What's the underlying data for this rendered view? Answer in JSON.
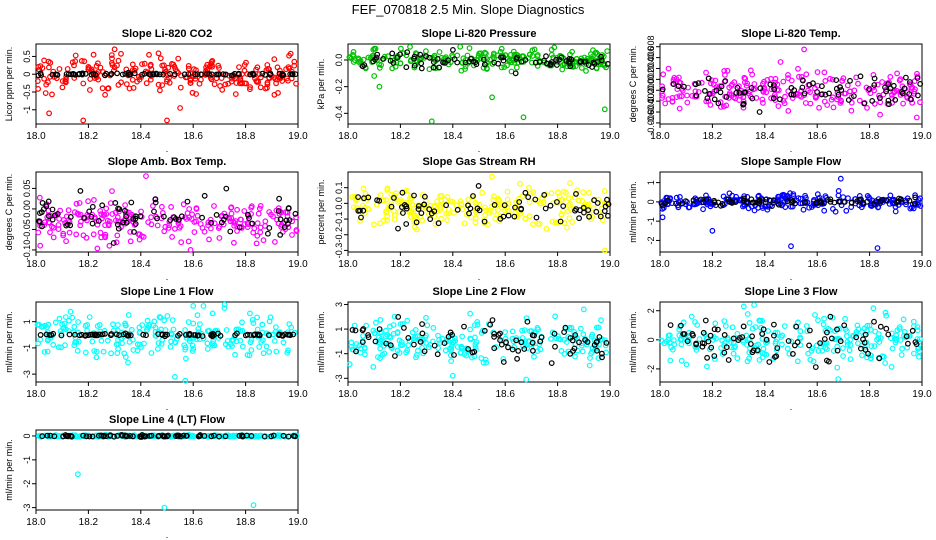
{
  "page": {
    "title": "FEF_070818  2.5 Min. Slope Diagnostics",
    "xlabel": "."
  },
  "chart_data": [
    {
      "type": "scatter",
      "title": "Slope Li-820 CO2",
      "ylabel": "Licor ppm per min.",
      "xlim": [
        18.0,
        19.0
      ],
      "ylim": [
        -1.4,
        0.85
      ],
      "xticks": [
        "18.0",
        "18.2",
        "18.4",
        "18.6",
        "18.8",
        "19.0"
      ],
      "yticks": [
        {
          "v": -1,
          "l": "-1"
        },
        {
          "v": -0.5,
          "l": "-0.5"
        },
        {
          "v": 0,
          "l": "0"
        },
        {
          "v": 0.5,
          "l": "0.5"
        }
      ],
      "series": [
        {
          "color": "#ff0000",
          "center": 0.0,
          "spread": 0.25,
          "outliers": [
            [
              18.05,
              -1.1
            ],
            [
              18.18,
              -1.3
            ],
            [
              18.5,
              -1.3
            ],
            [
              18.3,
              0.7
            ],
            [
              18.55,
              -0.95
            ],
            [
              18.22,
              0.55
            ]
          ]
        },
        {
          "color": "#000000",
          "center": 0.0,
          "spread": 0.015,
          "outliers": []
        }
      ]
    },
    {
      "type": "scatter",
      "title": "Slope Li-820 Pressure",
      "ylabel": "kPa per min.",
      "xlim": [
        18.0,
        19.0
      ],
      "ylim": [
        -0.48,
        0.12
      ],
      "xticks": [
        "18.0",
        "18.2",
        "18.4",
        "18.6",
        "18.8",
        "19.0"
      ],
      "yticks": [
        {
          "v": -0.4,
          "l": "-0.4"
        },
        {
          "v": -0.2,
          "l": "-0.2"
        },
        {
          "v": 0,
          "l": "0.0"
        }
      ],
      "series": [
        {
          "color": "#00c000",
          "center": 0.0,
          "spread": 0.04,
          "outliers": [
            [
              18.32,
              -0.46
            ],
            [
              18.12,
              -0.2
            ],
            [
              18.55,
              -0.28
            ],
            [
              18.67,
              -0.43
            ],
            [
              18.98,
              -0.37
            ],
            [
              18.1,
              -0.12
            ]
          ]
        },
        {
          "color": "#000000",
          "center": 0.0,
          "spread": 0.03,
          "outliers": [
            [
              18.64,
              -0.1
            ]
          ]
        }
      ]
    },
    {
      "type": "scatter",
      "title": "Slope Li-820 Temp.",
      "ylabel": "degrees C per min.",
      "xlim": [
        18.0,
        19.0
      ],
      "ylim": [
        -0.0062,
        0.0085
      ],
      "xticks": [
        "18.0",
        "18.2",
        "18.4",
        "18.6",
        "18.8",
        "19.0"
      ],
      "yticks": [
        {
          "v": -0.006,
          "l": "-0.006"
        },
        {
          "v": -0.004,
          "l": "-0.004"
        },
        {
          "v": -0.002,
          "l": "-0.002"
        },
        {
          "v": 0,
          "l": "0.000"
        },
        {
          "v": 0.002,
          "l": "0.002"
        },
        {
          "v": 0.004,
          "l": "0.004"
        },
        {
          "v": 0.006,
          "l": "0.006"
        },
        {
          "v": 0.008,
          "l": "0.008"
        }
      ],
      "series": [
        {
          "color": "#ff00ff",
          "center": 0.0,
          "spread": 0.0016,
          "outliers": [
            [
              18.55,
              0.0075
            ],
            [
              18.98,
              -0.005
            ],
            [
              18.84,
              -0.0045
            ],
            [
              18.46,
              0.0052
            ]
          ]
        },
        {
          "color": "#000000",
          "center": 0.0,
          "spread": 0.0015,
          "outliers": [
            [
              18.38,
              -0.004
            ]
          ]
        }
      ]
    },
    {
      "type": "scatter",
      "title": "Slope Amb. Box Temp.",
      "ylabel": "degrees C per min.",
      "xlim": [
        18.0,
        19.0
      ],
      "ylim": [
        -0.105,
        0.09
      ],
      "xticks": [
        "18.0",
        "18.2",
        "18.4",
        "18.6",
        "18.8",
        "19.0"
      ],
      "yticks": [
        {
          "v": -0.1,
          "l": "-0.10"
        },
        {
          "v": -0.05,
          "l": "-0.05"
        },
        {
          "v": 0,
          "l": "0.00"
        },
        {
          "v": 0.05,
          "l": "0.05"
        }
      ],
      "series": [
        {
          "color": "#ff00ff",
          "center": -0.03,
          "spread": 0.025,
          "outliers": [
            [
              18.42,
              0.08
            ],
            [
              18.59,
              -0.1
            ],
            [
              18.28,
              -0.09
            ]
          ]
        },
        {
          "color": "#000000",
          "center": -0.02,
          "spread": 0.025,
          "outliers": []
        }
      ]
    },
    {
      "type": "scatter",
      "title": "Slope Gas Stream RH",
      "ylabel": "percent per min.",
      "xlim": [
        18.0,
        19.0
      ],
      "ylim": [
        -0.31,
        0.2
      ],
      "xticks": [
        "18.0",
        "18.2",
        "18.4",
        "18.6",
        "18.8",
        "19.0"
      ],
      "yticks": [
        {
          "v": -0.3,
          "l": "-0.3"
        },
        {
          "v": -0.2,
          "l": "-0.2"
        },
        {
          "v": -0.1,
          "l": "-0.1"
        },
        {
          "v": 0,
          "l": "0.0"
        },
        {
          "v": 0.1,
          "l": "0.1"
        }
      ],
      "series": [
        {
          "color": "#ffff00",
          "center": -0.02,
          "spread": 0.06,
          "outliers": [
            [
              18.98,
              -0.3
            ],
            [
              18.55,
              0.17
            ]
          ]
        },
        {
          "color": "#000000",
          "center": -0.03,
          "spread": 0.05,
          "outliers": []
        }
      ]
    },
    {
      "type": "scatter",
      "title": "Slope Sample Flow",
      "ylabel": "ml/min per min.",
      "xlim": [
        18.0,
        19.0
      ],
      "ylim": [
        -2.6,
        1.55
      ],
      "xticks": [
        "18.0",
        "18.2",
        "18.4",
        "18.6",
        "18.8",
        "19.0"
      ],
      "yticks": [
        {
          "v": -2,
          "l": "-2"
        },
        {
          "v": -1,
          "l": "-1"
        },
        {
          "v": 0,
          "l": "0"
        },
        {
          "v": 1,
          "l": "1"
        }
      ],
      "series": [
        {
          "color": "#0000ff",
          "center": 0.0,
          "spread": 0.2,
          "outliers": [
            [
              18.2,
              -1.5
            ],
            [
              18.5,
              -2.3
            ],
            [
              18.83,
              -2.4
            ],
            [
              18.69,
              1.2
            ],
            [
              18.01,
              -0.8
            ]
          ]
        },
        {
          "color": "#000000",
          "center": 0.0,
          "spread": 0.1,
          "outliers": []
        }
      ]
    },
    {
      "type": "scatter",
      "title": "Slope Line 1 Flow",
      "ylabel": "ml/min per min.",
      "xlim": [
        18.0,
        19.0
      ],
      "ylim": [
        -3.6,
        2.5
      ],
      "xticks": [
        "18.0",
        "18.2",
        "18.4",
        "18.6",
        "18.8",
        "19.0"
      ],
      "yticks": [
        {
          "v": -3,
          "l": "-3"
        },
        {
          "v": -1,
          "l": "-1"
        },
        {
          "v": 1,
          "l": "1"
        }
      ],
      "series": [
        {
          "color": "#00ffff",
          "center": 0.0,
          "spread": 0.8,
          "outliers": [
            [
              18.53,
              -3.2
            ],
            [
              18.57,
              -3.5
            ],
            [
              18.6,
              2.2
            ]
          ]
        },
        {
          "color": "#000000",
          "center": 0.0,
          "spread": 0.05,
          "outliers": []
        }
      ]
    },
    {
      "type": "scatter",
      "title": "Slope Line 2 Flow",
      "ylabel": "ml/min per min.",
      "xlim": [
        18.0,
        19.0
      ],
      "ylim": [
        -3.3,
        3.2
      ],
      "xticks": [
        "18.0",
        "18.2",
        "18.4",
        "18.6",
        "18.8",
        "19.0"
      ],
      "yticks": [
        {
          "v": -3,
          "l": "-3"
        },
        {
          "v": -1,
          "l": "-1"
        },
        {
          "v": 1,
          "l": "1"
        },
        {
          "v": 3,
          "l": "3"
        }
      ],
      "series": [
        {
          "color": "#00ffff",
          "center": 0.0,
          "spread": 0.9,
          "outliers": [
            [
              18.68,
              -3.1
            ],
            [
              18.4,
              -2.8
            ],
            [
              18.9,
              2.6
            ]
          ]
        },
        {
          "color": "#000000",
          "center": 0.0,
          "spread": 0.8,
          "outliers": []
        }
      ]
    },
    {
      "type": "scatter",
      "title": "Slope Line 3 Flow",
      "ylabel": "ml/min per min.",
      "xlim": [
        18.0,
        19.0
      ],
      "ylim": [
        -2.9,
        2.6
      ],
      "xticks": [
        "18.0",
        "18.2",
        "18.4",
        "18.6",
        "18.8",
        "19.0"
      ],
      "yticks": [
        {
          "v": -2,
          "l": "-2"
        },
        {
          "v": 0,
          "l": "0"
        },
        {
          "v": 2,
          "l": "2"
        }
      ],
      "series": [
        {
          "color": "#00ffff",
          "center": 0.0,
          "spread": 0.8,
          "outliers": [
            [
              18.68,
              -2.7
            ],
            [
              18.32,
              2.3
            ]
          ]
        },
        {
          "color": "#000000",
          "center": 0.0,
          "spread": 0.7,
          "outliers": []
        }
      ]
    },
    {
      "type": "scatter",
      "title": "Slope Line 4 (LT) Flow",
      "ylabel": "ml/min per min.",
      "xlim": [
        18.0,
        19.0
      ],
      "ylim": [
        -3.1,
        0.25
      ],
      "xticks": [
        "18.0",
        "18.2",
        "18.4",
        "18.6",
        "18.8",
        "19.0"
      ],
      "yticks": [
        {
          "v": -3,
          "l": "-3"
        },
        {
          "v": -2,
          "l": "-2"
        },
        {
          "v": -1,
          "l": "-1"
        },
        {
          "v": 0,
          "l": "0"
        }
      ],
      "series": [
        {
          "color": "#00ffff",
          "center": 0.0,
          "spread": 0.02,
          "outliers": [
            [
              18.16,
              -1.6
            ],
            [
              18.49,
              -3.0
            ],
            [
              18.83,
              -2.9
            ]
          ]
        },
        {
          "color": "#000000",
          "center": 0.0,
          "spread": 0.02,
          "outliers": []
        }
      ]
    }
  ]
}
